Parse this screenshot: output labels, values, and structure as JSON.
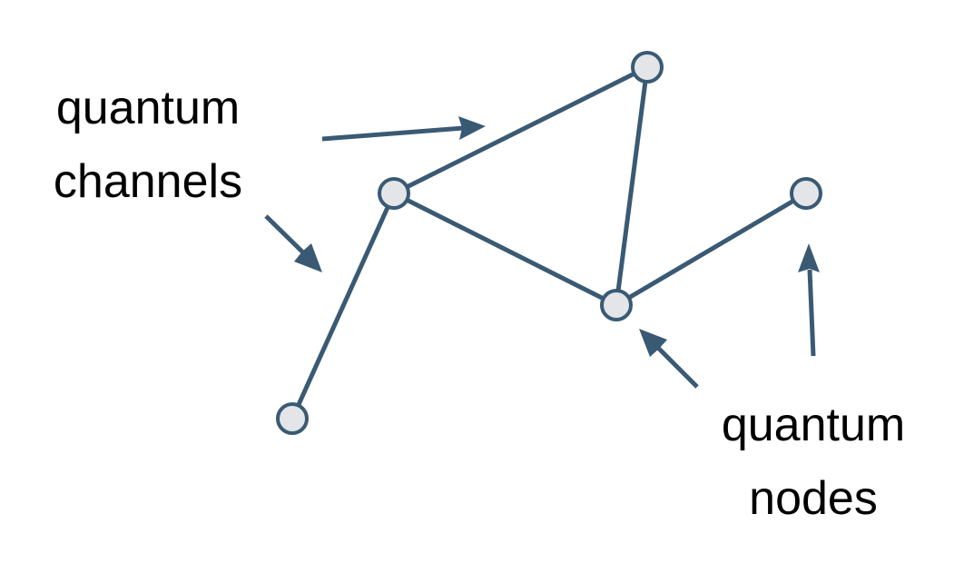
{
  "diagram": {
    "colors": {
      "edge": "#3a5a74",
      "node_fill": "#e3e5e8",
      "node_stroke": "#3a5a74",
      "text": "#000000",
      "background": "#ffffff"
    },
    "labels": {
      "channels": {
        "line1": "quantum",
        "line2": "channels"
      },
      "nodes": {
        "line1": "quantum",
        "line2": "nodes"
      }
    },
    "nodes": [
      {
        "id": "n-top"
      },
      {
        "id": "n-left"
      },
      {
        "id": "n-right"
      },
      {
        "id": "n-center"
      },
      {
        "id": "n-bottom-left"
      }
    ],
    "edges": [
      {
        "from": "n-left",
        "to": "n-top"
      },
      {
        "from": "n-top",
        "to": "n-center"
      },
      {
        "from": "n-left",
        "to": "n-center"
      },
      {
        "from": "n-center",
        "to": "n-right"
      },
      {
        "from": "n-left",
        "to": "n-bottom-left"
      }
    ]
  }
}
